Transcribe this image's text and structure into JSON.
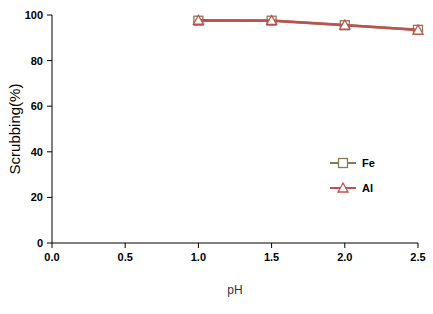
{
  "chart_data": {
    "type": "line",
    "x": [
      1.0,
      1.5,
      2.0,
      2.5
    ],
    "series": [
      {
        "name": "Fe",
        "color": "#8b7a5a",
        "marker": "square",
        "values": [
          97.5,
          97.5,
          95.5,
          93.5
        ]
      },
      {
        "name": "Al",
        "color": "#c0504d",
        "marker": "triangle",
        "values": [
          97.7,
          97.6,
          95.6,
          93.4
        ]
      }
    ],
    "x_label": "pH",
    "y_label": "Scrubbing(%)",
    "xlim": [
      0,
      2.5
    ],
    "ylim": [
      0,
      100
    ],
    "xticks": [
      {
        "value": 0,
        "label": "0.0"
      },
      {
        "value": 0.5,
        "label": "0.5"
      },
      {
        "value": 1,
        "label": "1.0"
      },
      {
        "value": 1.5,
        "label": "1.5"
      },
      {
        "value": 2,
        "label": "2.0"
      },
      {
        "value": 2.5,
        "label": "2.5"
      }
    ],
    "yticks": [
      0,
      20,
      40,
      60,
      80,
      100
    ],
    "grid": false,
    "legend": "right"
  }
}
